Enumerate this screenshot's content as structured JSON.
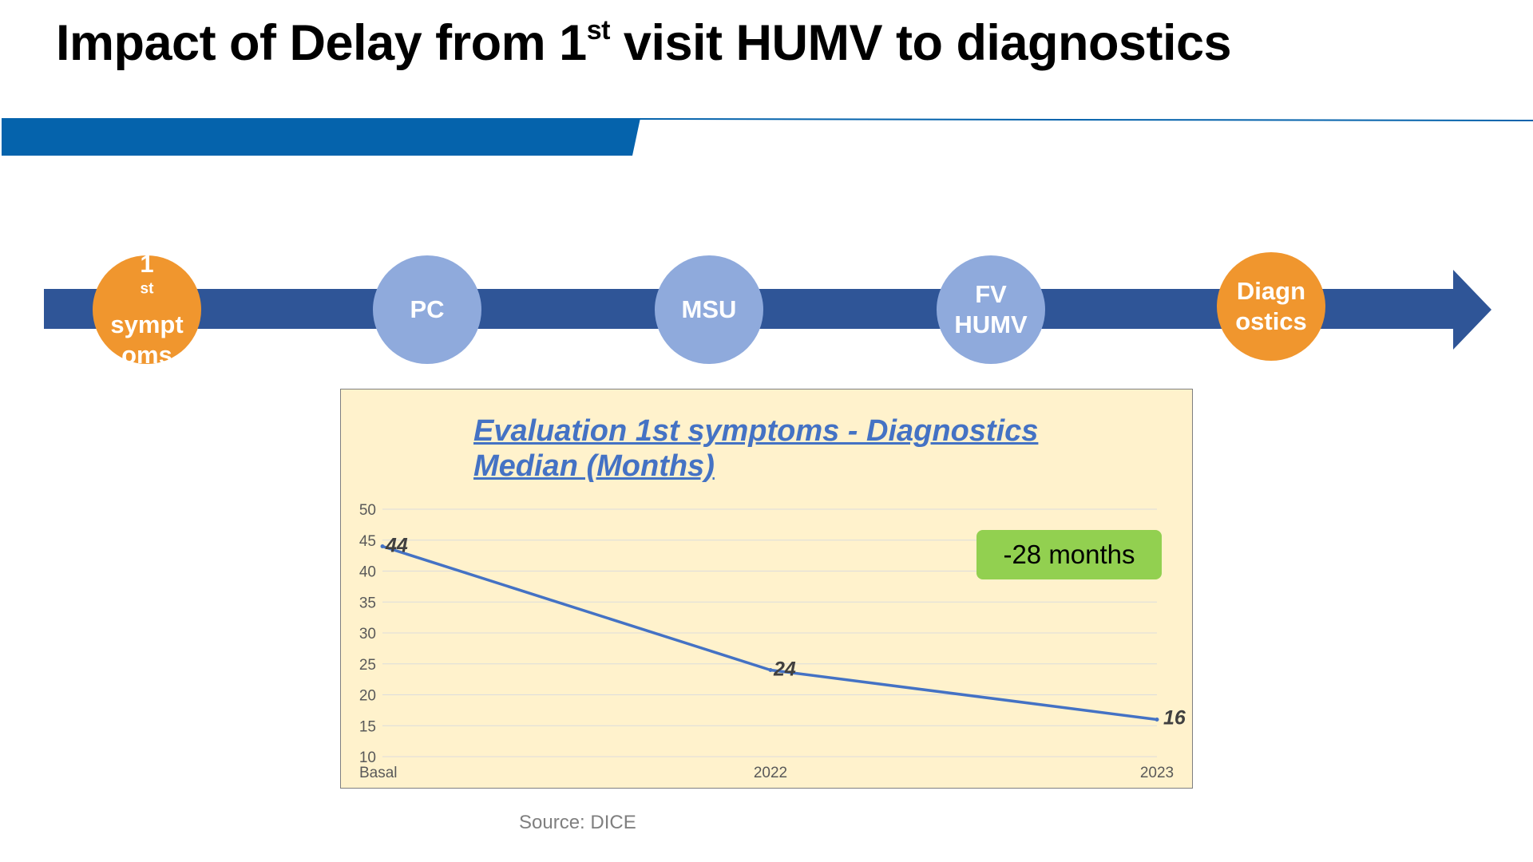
{
  "slide": {
    "title_main": "Impact of Delay from 1",
    "title_sup": "st",
    "title_rest": " visit HUMV to diagnostics",
    "source": "Source: DICE"
  },
  "colors": {
    "banner_blue": "#0563ac",
    "arrow_blue": "#2f5597",
    "node_orange": "#f0962e",
    "node_blue": "#8faadc",
    "chart_bg": "#fff2cc",
    "line": "#4472c4",
    "badge_green": "#92d050"
  },
  "timeline": {
    "steps": [
      {
        "lines": [
          "1st",
          "sympt",
          "oms"
        ],
        "sup_first": true,
        "style": "orange"
      },
      {
        "lines": [
          "PC"
        ],
        "style": "blue"
      },
      {
        "lines": [
          "MSU"
        ],
        "style": "blue"
      },
      {
        "lines": [
          "FV",
          "HUMV"
        ],
        "style": "blue"
      },
      {
        "lines": [
          "Diagn",
          "ostics"
        ],
        "style": "orange"
      }
    ]
  },
  "chart_data": {
    "type": "line",
    "title_line1": "Evaluation 1st symptoms - Diagnostics",
    "title_line2": "Median (Months)",
    "categories": [
      "Basal",
      "2022",
      "2023"
    ],
    "series": [
      {
        "name": "Median (Months)",
        "values": [
          44,
          24,
          16
        ]
      }
    ],
    "data_labels": [
      "44",
      "24",
      "16"
    ],
    "yticks": [
      10,
      15,
      20,
      25,
      30,
      35,
      40,
      45,
      50
    ],
    "ylim": [
      10,
      50
    ],
    "xlabel": "",
    "ylabel": "",
    "grid": true,
    "annotation": "-28 months"
  }
}
